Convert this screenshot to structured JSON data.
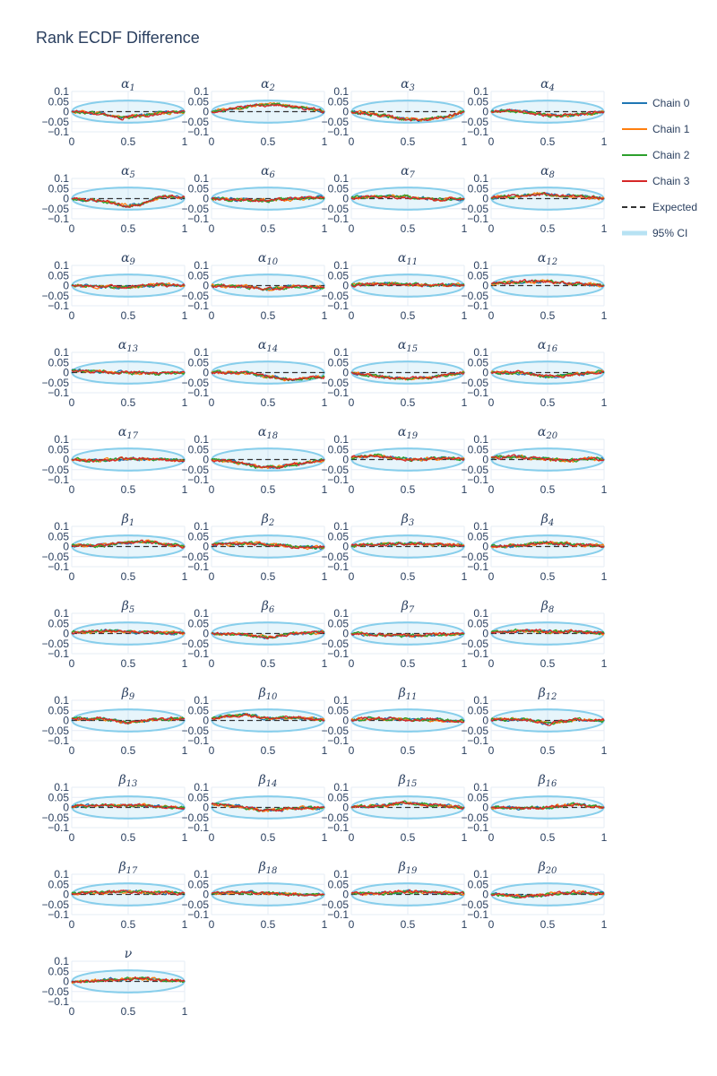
{
  "title": "Rank ECDF Difference",
  "legend": {
    "items": [
      {
        "label": "Chain 0",
        "color": "#1f77b4",
        "style": "solid"
      },
      {
        "label": "Chain 1",
        "color": "#ff7f0e",
        "style": "solid"
      },
      {
        "label": "Chain 2",
        "color": "#2ca02c",
        "style": "solid"
      },
      {
        "label": "Chain 3",
        "color": "#d62728",
        "style": "solid"
      },
      {
        "label": "Expected",
        "color": "#333333",
        "style": "dash"
      },
      {
        "label": "95% CI",
        "color": "#87ceeb",
        "style": "band"
      }
    ]
  },
  "chart_data": {
    "type": "line",
    "layout": "small-multiples",
    "grid": true,
    "legend_position": "right",
    "xlim": [
      0,
      1
    ],
    "ylim": [
      -0.1,
      0.1
    ],
    "x_ticks": [
      "0",
      "0.5",
      "1"
    ],
    "y_ticks": [
      "0.1",
      "0.05",
      "0",
      "−0.05",
      "−0.1"
    ],
    "ci_half_width": 0.055,
    "expected": 0,
    "series_names": [
      "Chain 0",
      "Chain 1",
      "Chain 2",
      "Chain 3"
    ],
    "panels": [
      {
        "sym": "α",
        "sub": "1",
        "trend": [
          [
            0,
            0
          ],
          [
            0.2,
            -0.005
          ],
          [
            0.45,
            -0.03
          ],
          [
            0.6,
            -0.02
          ],
          [
            0.8,
            -0.005
          ],
          [
            1,
            0
          ]
        ]
      },
      {
        "sym": "α",
        "sub": "2",
        "trend": [
          [
            0,
            0
          ],
          [
            0.15,
            0.01
          ],
          [
            0.4,
            0.03
          ],
          [
            0.55,
            0.035
          ],
          [
            0.8,
            0.02
          ],
          [
            1,
            0
          ]
        ]
      },
      {
        "sym": "α",
        "sub": "3",
        "trend": [
          [
            0,
            0
          ],
          [
            0.2,
            -0.015
          ],
          [
            0.45,
            -0.035
          ],
          [
            0.6,
            -0.04
          ],
          [
            0.85,
            -0.025
          ],
          [
            1,
            0
          ]
        ]
      },
      {
        "sym": "α",
        "sub": "4",
        "trend": [
          [
            0,
            0
          ],
          [
            0.2,
            0.005
          ],
          [
            0.45,
            -0.015
          ],
          [
            0.6,
            -0.02
          ],
          [
            0.8,
            -0.015
          ],
          [
            1,
            0
          ]
        ]
      },
      {
        "sym": "α",
        "sub": "5",
        "trend": [
          [
            0,
            0
          ],
          [
            0.25,
            -0.01
          ],
          [
            0.5,
            -0.035
          ],
          [
            0.6,
            -0.03
          ],
          [
            0.8,
            0.01
          ],
          [
            1,
            0.005
          ]
        ]
      },
      {
        "sym": "α",
        "sub": "6",
        "trend": [
          [
            0,
            0
          ],
          [
            0.25,
            -0.005
          ],
          [
            0.5,
            -0.01
          ],
          [
            0.75,
            0
          ],
          [
            1,
            0.005
          ]
        ]
      },
      {
        "sym": "α",
        "sub": "7",
        "trend": [
          [
            0,
            0.005
          ],
          [
            0.2,
            0.01
          ],
          [
            0.5,
            0.01
          ],
          [
            0.75,
            -0.005
          ],
          [
            1,
            0
          ]
        ]
      },
      {
        "sym": "α",
        "sub": "8",
        "trend": [
          [
            0,
            0.005
          ],
          [
            0.25,
            0.015
          ],
          [
            0.45,
            0.025
          ],
          [
            0.6,
            0.015
          ],
          [
            0.8,
            0.01
          ],
          [
            1,
            0
          ]
        ]
      },
      {
        "sym": "α",
        "sub": "9",
        "trend": [
          [
            0,
            0
          ],
          [
            0.25,
            -0.005
          ],
          [
            0.5,
            -0.01
          ],
          [
            0.75,
            0.005
          ],
          [
            1,
            0
          ]
        ]
      },
      {
        "sym": "α",
        "sub": "10",
        "trend": [
          [
            0,
            0
          ],
          [
            0.3,
            -0.005
          ],
          [
            0.5,
            -0.02
          ],
          [
            0.7,
            -0.005
          ],
          [
            1,
            -0.01
          ]
        ]
      },
      {
        "sym": "α",
        "sub": "11",
        "trend": [
          [
            0,
            0.005
          ],
          [
            0.3,
            0.01
          ],
          [
            0.5,
            0.005
          ],
          [
            0.75,
            0
          ],
          [
            1,
            0.005
          ]
        ]
      },
      {
        "sym": "α",
        "sub": "12",
        "trend": [
          [
            0,
            0.01
          ],
          [
            0.3,
            0.02
          ],
          [
            0.5,
            0.02
          ],
          [
            0.75,
            0.01
          ],
          [
            1,
            0
          ]
        ]
      },
      {
        "sym": "α",
        "sub": "13",
        "trend": [
          [
            0,
            0.01
          ],
          [
            0.25,
            0.005
          ],
          [
            0.5,
            0
          ],
          [
            0.75,
            -0.005
          ],
          [
            1,
            0
          ]
        ]
      },
      {
        "sym": "α",
        "sub": "14",
        "trend": [
          [
            0,
            0
          ],
          [
            0.3,
            0
          ],
          [
            0.5,
            -0.02
          ],
          [
            0.7,
            -0.035
          ],
          [
            1,
            -0.02
          ]
        ]
      },
      {
        "sym": "α",
        "sub": "15",
        "trend": [
          [
            0,
            0
          ],
          [
            0.25,
            -0.02
          ],
          [
            0.5,
            -0.03
          ],
          [
            0.75,
            -0.02
          ],
          [
            1,
            0
          ]
        ]
      },
      {
        "sym": "α",
        "sub": "16",
        "trend": [
          [
            0,
            0
          ],
          [
            0.25,
            0
          ],
          [
            0.5,
            -0.02
          ],
          [
            0.75,
            -0.01
          ],
          [
            1,
            0.005
          ]
        ]
      },
      {
        "sym": "α",
        "sub": "17",
        "trend": [
          [
            0,
            0
          ],
          [
            0.25,
            -0.005
          ],
          [
            0.5,
            0.005
          ],
          [
            0.75,
            0
          ],
          [
            1,
            -0.005
          ]
        ]
      },
      {
        "sym": "α",
        "sub": "18",
        "trend": [
          [
            0,
            0
          ],
          [
            0.2,
            -0.01
          ],
          [
            0.4,
            -0.035
          ],
          [
            0.6,
            -0.035
          ],
          [
            0.8,
            -0.02
          ],
          [
            1,
            0
          ]
        ]
      },
      {
        "sym": "α",
        "sub": "19",
        "trend": [
          [
            0,
            0.01
          ],
          [
            0.2,
            0.02
          ],
          [
            0.5,
            0
          ],
          [
            0.75,
            0.005
          ],
          [
            1,
            0.005
          ]
        ]
      },
      {
        "sym": "α",
        "sub": "20",
        "trend": [
          [
            0,
            0.01
          ],
          [
            0.25,
            0.015
          ],
          [
            0.5,
            0
          ],
          [
            0.7,
            -0.005
          ],
          [
            0.85,
            0.005
          ],
          [
            1,
            0
          ]
        ]
      },
      {
        "sym": "β",
        "sub": "1",
        "trend": [
          [
            0,
            0.005
          ],
          [
            0.25,
            0.005
          ],
          [
            0.5,
            0.02
          ],
          [
            0.65,
            0.025
          ],
          [
            1,
            0
          ]
        ]
      },
      {
        "sym": "β",
        "sub": "2",
        "trend": [
          [
            0,
            0.01
          ],
          [
            0.25,
            0.015
          ],
          [
            0.5,
            0.01
          ],
          [
            0.75,
            0
          ],
          [
            1,
            -0.005
          ]
        ]
      },
      {
        "sym": "β",
        "sub": "3",
        "trend": [
          [
            0,
            0.005
          ],
          [
            0.25,
            0.01
          ],
          [
            0.5,
            0.015
          ],
          [
            0.75,
            0.01
          ],
          [
            1,
            0.005
          ]
        ]
      },
      {
        "sym": "β",
        "sub": "4",
        "trend": [
          [
            0,
            0
          ],
          [
            0.25,
            0.005
          ],
          [
            0.5,
            0.02
          ],
          [
            0.75,
            0.01
          ],
          [
            1,
            0
          ]
        ]
      },
      {
        "sym": "β",
        "sub": "5",
        "trend": [
          [
            0,
            0.005
          ],
          [
            0.3,
            0.015
          ],
          [
            0.5,
            0.01
          ],
          [
            0.75,
            0.005
          ],
          [
            1,
            0
          ]
        ]
      },
      {
        "sym": "β",
        "sub": "6",
        "trend": [
          [
            0,
            0
          ],
          [
            0.3,
            -0.005
          ],
          [
            0.55,
            -0.02
          ],
          [
            0.7,
            0
          ],
          [
            1,
            0.005
          ]
        ]
      },
      {
        "sym": "β",
        "sub": "7",
        "trend": [
          [
            0,
            0
          ],
          [
            0.3,
            -0.01
          ],
          [
            0.5,
            -0.01
          ],
          [
            0.75,
            -0.005
          ],
          [
            1,
            0
          ]
        ]
      },
      {
        "sym": "β",
        "sub": "8",
        "trend": [
          [
            0,
            0.005
          ],
          [
            0.25,
            0.015
          ],
          [
            0.5,
            0.01
          ],
          [
            0.75,
            0.01
          ],
          [
            1,
            0
          ]
        ]
      },
      {
        "sym": "β",
        "sub": "9",
        "trend": [
          [
            0,
            0.01
          ],
          [
            0.25,
            0.01
          ],
          [
            0.5,
            -0.01
          ],
          [
            0.75,
            0.005
          ],
          [
            1,
            0.01
          ]
        ]
      },
      {
        "sym": "β",
        "sub": "10",
        "trend": [
          [
            0,
            0.01
          ],
          [
            0.3,
            0.03
          ],
          [
            0.5,
            0.01
          ],
          [
            0.75,
            0.015
          ],
          [
            1,
            0
          ]
        ]
      },
      {
        "sym": "β",
        "sub": "11",
        "trend": [
          [
            0,
            0.005
          ],
          [
            0.25,
            0.01
          ],
          [
            0.5,
            0.005
          ],
          [
            0.75,
            0.005
          ],
          [
            1,
            -0.005
          ]
        ]
      },
      {
        "sym": "β",
        "sub": "12",
        "trend": [
          [
            0,
            0.005
          ],
          [
            0.3,
            0.005
          ],
          [
            0.5,
            -0.015
          ],
          [
            0.75,
            0.005
          ],
          [
            1,
            0
          ]
        ]
      },
      {
        "sym": "β",
        "sub": "13",
        "trend": [
          [
            0,
            0.005
          ],
          [
            0.25,
            0.01
          ],
          [
            0.5,
            0.01
          ],
          [
            0.75,
            0.005
          ],
          [
            1,
            -0.005
          ]
        ]
      },
      {
        "sym": "β",
        "sub": "14",
        "trend": [
          [
            0,
            0.015
          ],
          [
            0.25,
            0.005
          ],
          [
            0.45,
            -0.015
          ],
          [
            0.75,
            -0.005
          ],
          [
            1,
            0
          ]
        ]
      },
      {
        "sym": "β",
        "sub": "15",
        "trend": [
          [
            0,
            0
          ],
          [
            0.25,
            0.01
          ],
          [
            0.5,
            0.025
          ],
          [
            0.75,
            0.01
          ],
          [
            1,
            0
          ]
        ]
      },
      {
        "sym": "β",
        "sub": "16",
        "trend": [
          [
            0,
            0
          ],
          [
            0.25,
            -0.005
          ],
          [
            0.5,
            0
          ],
          [
            0.75,
            0.015
          ],
          [
            1,
            0
          ]
        ]
      },
      {
        "sym": "β",
        "sub": "17",
        "trend": [
          [
            0,
            0.005
          ],
          [
            0.25,
            0.01
          ],
          [
            0.5,
            0.015
          ],
          [
            0.75,
            0.01
          ],
          [
            1,
            0.005
          ]
        ]
      },
      {
        "sym": "β",
        "sub": "18",
        "trend": [
          [
            0,
            0.005
          ],
          [
            0.25,
            0.01
          ],
          [
            0.5,
            0.005
          ],
          [
            0.75,
            0
          ],
          [
            1,
            0
          ]
        ]
      },
      {
        "sym": "β",
        "sub": "19",
        "trend": [
          [
            0,
            0.005
          ],
          [
            0.25,
            0.005
          ],
          [
            0.5,
            0.015
          ],
          [
            0.75,
            0.01
          ],
          [
            1,
            0.005
          ]
        ]
      },
      {
        "sym": "β",
        "sub": "20",
        "trend": [
          [
            0,
            0
          ],
          [
            0.25,
            -0.01
          ],
          [
            0.5,
            0
          ],
          [
            0.75,
            0.01
          ],
          [
            1,
            0.005
          ]
        ]
      },
      {
        "sym": "ν",
        "sub": "",
        "trend": [
          [
            0,
            -0.005
          ],
          [
            0.25,
            0.005
          ],
          [
            0.55,
            0.015
          ],
          [
            0.75,
            0.01
          ],
          [
            1,
            0
          ]
        ]
      }
    ]
  }
}
